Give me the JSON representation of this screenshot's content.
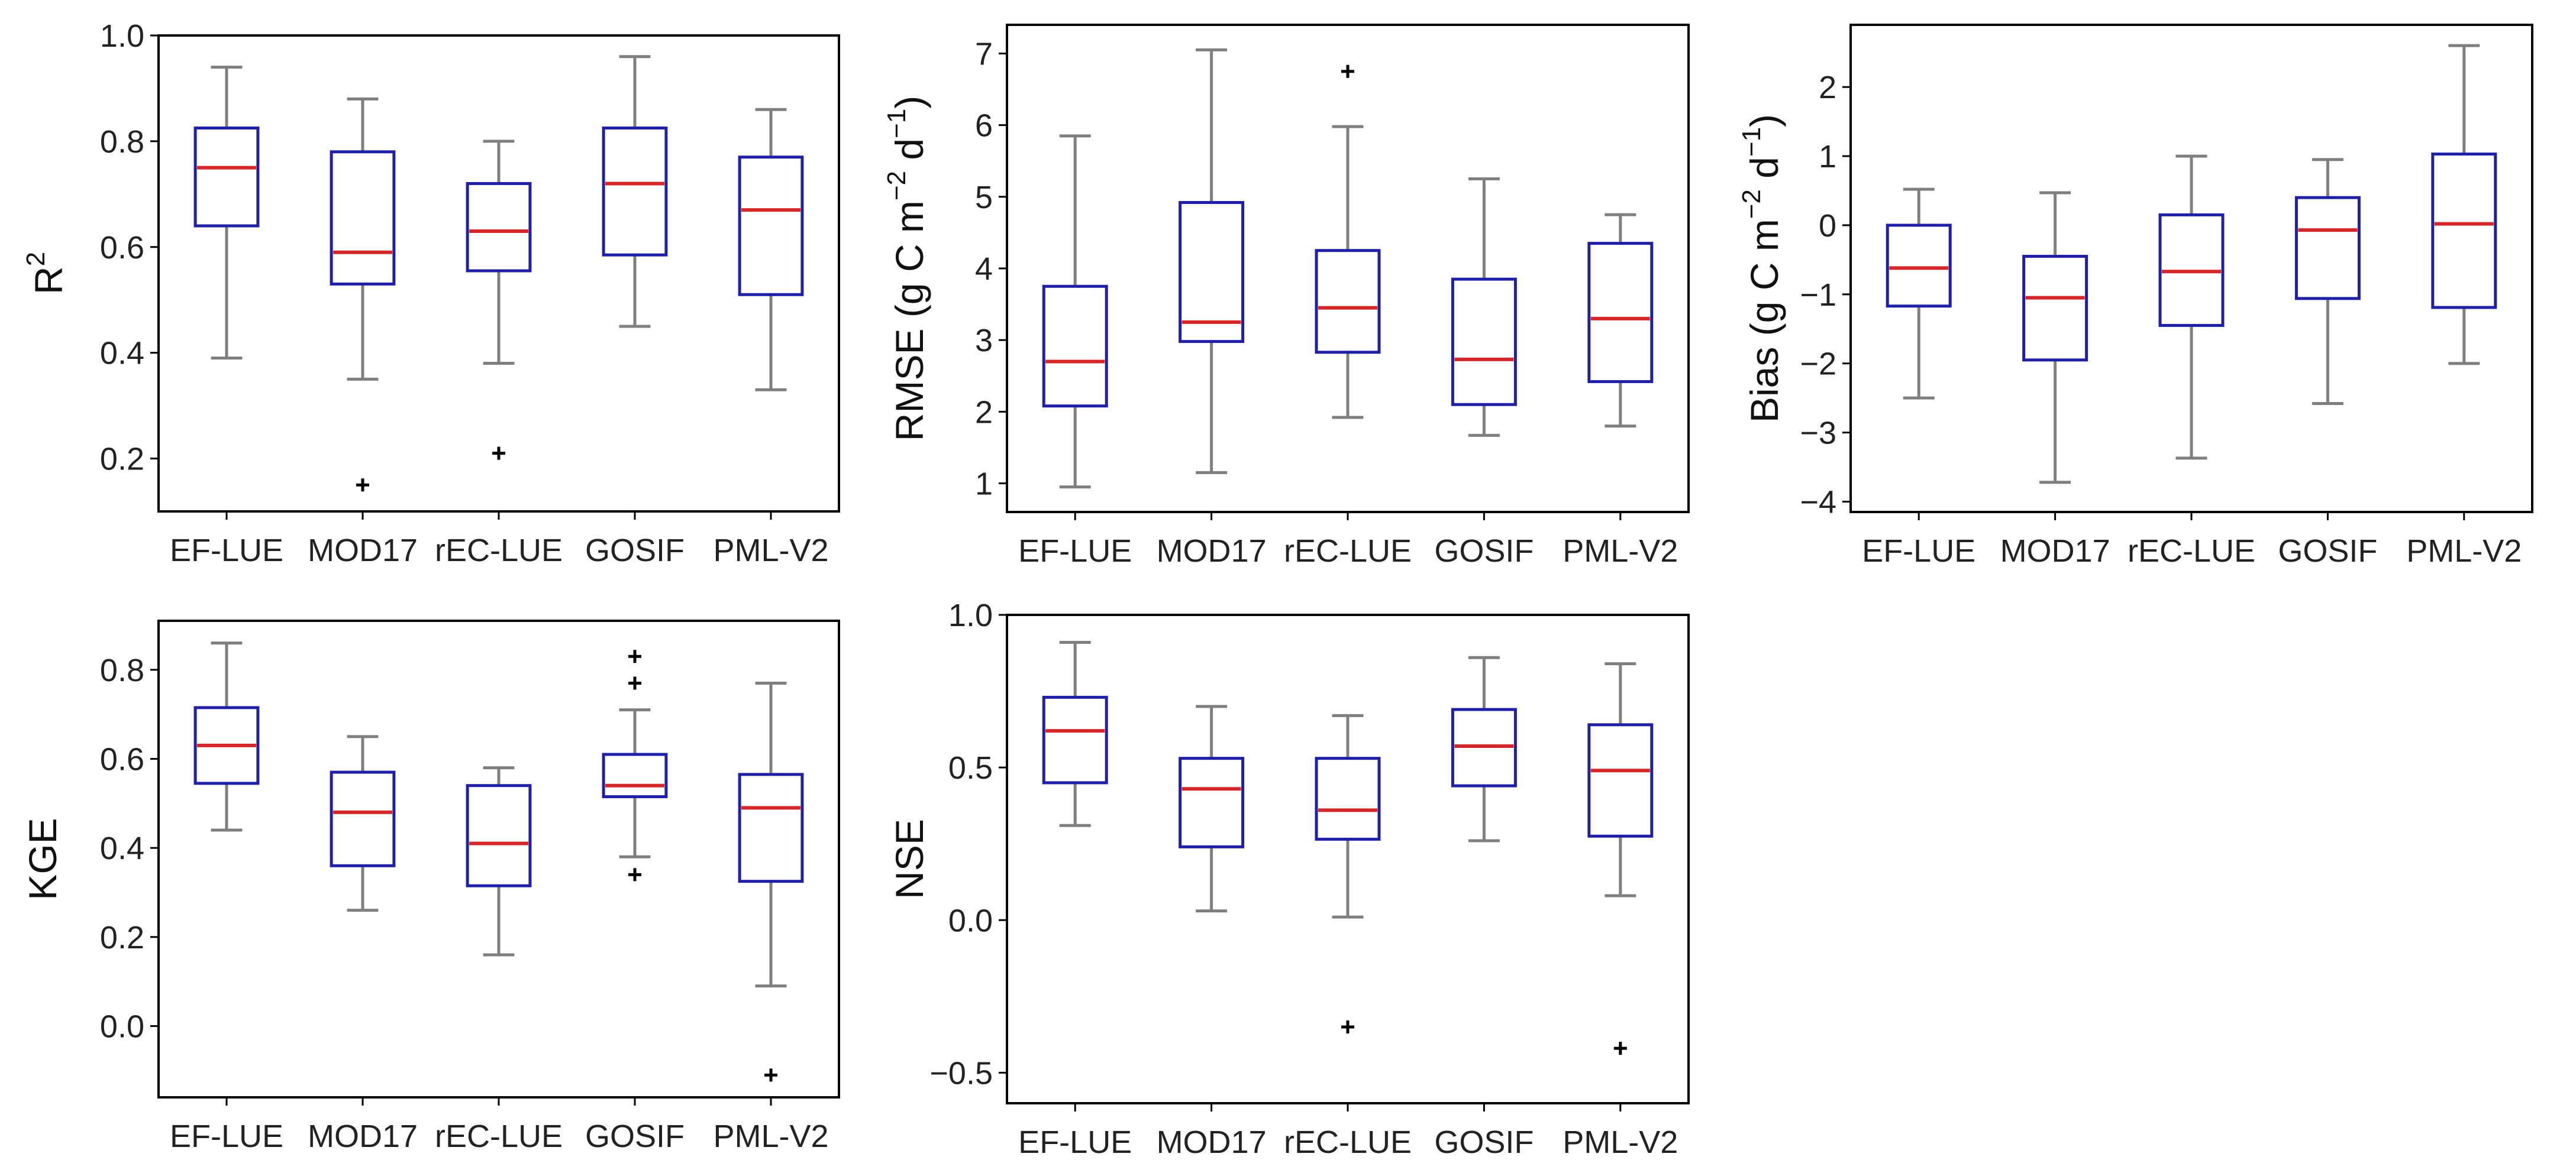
{
  "chart_data": [
    {
      "id": "r2",
      "type": "box",
      "ylabel_main": "R",
      "ylabel_sup": "2",
      "ylim": [
        0.1,
        1.0
      ],
      "yticks": [
        0.2,
        0.4,
        0.6,
        0.8,
        1.0
      ],
      "ytick_labels": [
        "0.2",
        "0.4",
        "0.6",
        "0.8",
        "1.0"
      ],
      "categories": [
        "EF-LUE",
        "MOD17",
        "rEC-LUE",
        "GOSIF",
        "PML-V2"
      ],
      "boxes": [
        {
          "whislo": 0.39,
          "q1": 0.64,
          "med": 0.75,
          "q3": 0.825,
          "whishi": 0.94,
          "fliers": []
        },
        {
          "whislo": 0.35,
          "q1": 0.53,
          "med": 0.59,
          "q3": 0.78,
          "whishi": 0.88,
          "fliers": [
            0.15
          ]
        },
        {
          "whislo": 0.38,
          "q1": 0.555,
          "med": 0.63,
          "q3": 0.72,
          "whishi": 0.8,
          "fliers": [
            0.21
          ]
        },
        {
          "whislo": 0.45,
          "q1": 0.585,
          "med": 0.72,
          "q3": 0.825,
          "whishi": 0.96,
          "fliers": []
        },
        {
          "whislo": 0.33,
          "q1": 0.51,
          "med": 0.67,
          "q3": 0.77,
          "whishi": 0.86,
          "fliers": []
        }
      ]
    },
    {
      "id": "rmse",
      "type": "box",
      "ylabel_main": "RMSE (g C m",
      "ylabel_sup1": "−2",
      "ylabel_mid": " d",
      "ylabel_sup2": "−1",
      "ylabel_end": ")",
      "ylim": [
        0.6,
        7.4
      ],
      "yticks": [
        1,
        2,
        3,
        4,
        5,
        6,
        7
      ],
      "ytick_labels": [
        "1",
        "2",
        "3",
        "4",
        "5",
        "6",
        "7"
      ],
      "categories": [
        "EF-LUE",
        "MOD17",
        "rEC-LUE",
        "GOSIF",
        "PML-V2"
      ],
      "boxes": [
        {
          "whislo": 0.95,
          "q1": 2.08,
          "med": 2.7,
          "q3": 3.75,
          "whishi": 5.85,
          "fliers": []
        },
        {
          "whislo": 1.15,
          "q1": 2.98,
          "med": 3.25,
          "q3": 4.92,
          "whishi": 7.05,
          "fliers": []
        },
        {
          "whislo": 1.92,
          "q1": 2.83,
          "med": 3.45,
          "q3": 4.25,
          "whishi": 5.98,
          "fliers": [
            6.75
          ]
        },
        {
          "whislo": 1.67,
          "q1": 2.1,
          "med": 2.73,
          "q3": 3.85,
          "whishi": 5.25,
          "fliers": []
        },
        {
          "whislo": 1.8,
          "q1": 2.42,
          "med": 3.3,
          "q3": 4.35,
          "whishi": 4.75,
          "fliers": []
        }
      ]
    },
    {
      "id": "bias",
      "type": "box",
      "ylabel_main": "Bias (g C m",
      "ylabel_sup1": "−2",
      "ylabel_mid": " d",
      "ylabel_sup2": "−1",
      "ylabel_end": ")",
      "ylim": [
        -4.15,
        2.9
      ],
      "yticks": [
        -4,
        -3,
        -2,
        -1,
        0,
        1,
        2
      ],
      "ytick_labels": [
        "−4",
        "−3",
        "−2",
        "−1",
        "0",
        "1",
        "2"
      ],
      "categories": [
        "EF-LUE",
        "MOD17",
        "rEC-LUE",
        "GOSIF",
        "PML-V2"
      ],
      "boxes": [
        {
          "whislo": -2.5,
          "q1": -1.17,
          "med": -0.62,
          "q3": 0.0,
          "whishi": 0.52,
          "fliers": []
        },
        {
          "whislo": -3.72,
          "q1": -1.95,
          "med": -1.05,
          "q3": -0.45,
          "whishi": 0.47,
          "fliers": []
        },
        {
          "whislo": -3.37,
          "q1": -1.45,
          "med": -0.67,
          "q3": 0.15,
          "whishi": 1.0,
          "fliers": []
        },
        {
          "whislo": -2.58,
          "q1": -1.06,
          "med": -0.07,
          "q3": 0.4,
          "whishi": 0.95,
          "fliers": []
        },
        {
          "whislo": -2.0,
          "q1": -1.19,
          "med": 0.02,
          "q3": 1.03,
          "whishi": 2.6,
          "fliers": []
        }
      ]
    },
    {
      "id": "kge",
      "type": "box",
      "ylabel_main": "KGE",
      "ylim": [
        -0.16,
        0.91
      ],
      "yticks": [
        0.0,
        0.2,
        0.4,
        0.6,
        0.8
      ],
      "ytick_labels": [
        "0.0",
        "0.2",
        "0.4",
        "0.6",
        "0.8"
      ],
      "categories": [
        "EF-LUE",
        "MOD17",
        "rEC-LUE",
        "GOSIF",
        "PML-V2"
      ],
      "boxes": [
        {
          "whislo": 0.44,
          "q1": 0.545,
          "med": 0.63,
          "q3": 0.715,
          "whishi": 0.86,
          "fliers": []
        },
        {
          "whislo": 0.26,
          "q1": 0.36,
          "med": 0.48,
          "q3": 0.57,
          "whishi": 0.65,
          "fliers": []
        },
        {
          "whislo": 0.16,
          "q1": 0.315,
          "med": 0.41,
          "q3": 0.54,
          "whishi": 0.58,
          "fliers": []
        },
        {
          "whislo": 0.38,
          "q1": 0.515,
          "med": 0.54,
          "q3": 0.61,
          "whishi": 0.71,
          "fliers": [
            0.83,
            0.77,
            0.34
          ]
        },
        {
          "whislo": 0.09,
          "q1": 0.325,
          "med": 0.49,
          "q3": 0.565,
          "whishi": 0.77,
          "fliers": [
            -0.11
          ]
        }
      ]
    },
    {
      "id": "nse",
      "type": "box",
      "ylabel_main": "NSE",
      "ylim": [
        -0.6,
        1.0
      ],
      "yticks": [
        -0.5,
        0.0,
        0.5,
        1.0
      ],
      "ytick_labels": [
        "−0.5",
        "0.0",
        "0.5",
        "1.0"
      ],
      "categories": [
        "EF-LUE",
        "MOD17",
        "rEC-LUE",
        "GOSIF",
        "PML-V2"
      ],
      "boxes": [
        {
          "whislo": 0.31,
          "q1": 0.45,
          "med": 0.62,
          "q3": 0.73,
          "whishi": 0.91,
          "fliers": []
        },
        {
          "whislo": 0.03,
          "q1": 0.24,
          "med": 0.43,
          "q3": 0.53,
          "whishi": 0.7,
          "fliers": []
        },
        {
          "whislo": 0.01,
          "q1": 0.265,
          "med": 0.36,
          "q3": 0.53,
          "whishi": 0.67,
          "fliers": [
            -0.35
          ]
        },
        {
          "whislo": 0.26,
          "q1": 0.44,
          "med": 0.57,
          "q3": 0.69,
          "whishi": 0.86,
          "fliers": []
        },
        {
          "whislo": 0.08,
          "q1": 0.275,
          "med": 0.49,
          "q3": 0.64,
          "whishi": 0.84,
          "fliers": [
            -0.42
          ]
        }
      ]
    }
  ],
  "colors": {
    "box": "#1f1fa8",
    "median": "#d62728",
    "whisker": "#7f7f7f",
    "flier": "#000000",
    "frame": "#000000"
  }
}
